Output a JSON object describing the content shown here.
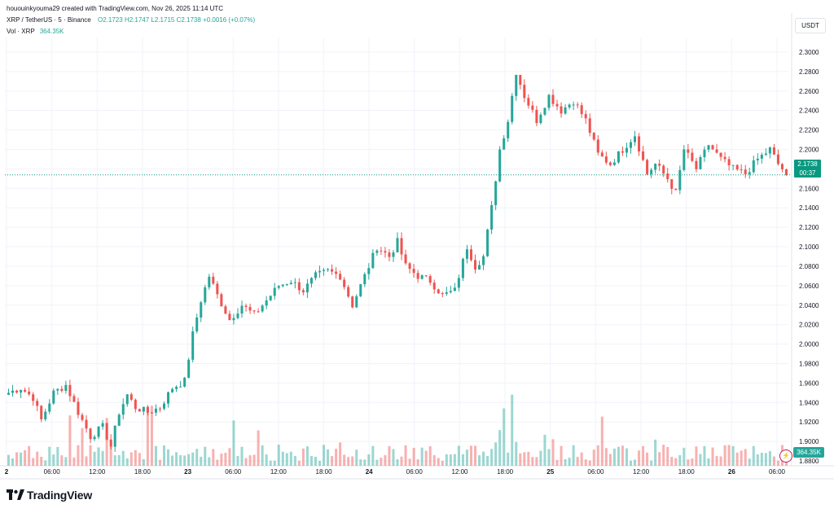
{
  "header": {
    "caption": "hououinkyouma29 created with TradingView.com, Nov 26, 2025 11:14 UTC"
  },
  "legend": {
    "symbol": "XRP / TetherUS · 5 · Binance",
    "open": "O2.1723",
    "high": "H2.1747",
    "low": "L2.1715",
    "close": "C2.1738",
    "change": "+0.0016 (+0.07%)"
  },
  "volume": {
    "label": "Vol · XRP",
    "value": "364.35K"
  },
  "currency": "USDT",
  "last_price": {
    "price": "2.1738",
    "countdown": "00:37",
    "value": 2.1738
  },
  "footer": {
    "brand": "TradingView"
  },
  "colors": {
    "up": "#26a69a",
    "down": "#ef5350",
    "price_line": "#089981"
  },
  "icons": {
    "bolt": "lightning-icon",
    "logo": "tradingview-logo-icon"
  },
  "chart_data": {
    "type": "candlestick",
    "ylim": [
      1.875,
      2.315
    ],
    "y_ticks": [
      "2.3000",
      "2.2800",
      "2.2600",
      "2.2400",
      "2.2200",
      "2.2000",
      "2.1800",
      "2.1600",
      "2.1400",
      "2.1200",
      "2.1000",
      "2.0800",
      "2.0600",
      "2.0400",
      "2.0200",
      "2.0000",
      "1.9800",
      "1.9600",
      "1.9400",
      "1.9200",
      "1.9000",
      "1.8800"
    ],
    "x_ticks": [
      "2",
      "06:00",
      "12:00",
      "18:00",
      "23",
      "06:00",
      "12:00",
      "18:00",
      "24",
      "06:00",
      "12:00",
      "18:00",
      "25",
      "06:00",
      "12:00",
      "18:00",
      "26",
      "06:00"
    ],
    "grid": true,
    "series": [
      {
        "anchors": [
          [
            0,
            1.95
          ],
          [
            3,
            1.955
          ],
          [
            6,
            1.945
          ],
          [
            8,
            1.922
          ],
          [
            11,
            1.95
          ],
          [
            14,
            1.958
          ],
          [
            17,
            1.93
          ],
          [
            20,
            1.905
          ],
          [
            23,
            1.915
          ],
          [
            25,
            1.895
          ],
          [
            27,
            1.93
          ],
          [
            29,
            1.948
          ],
          [
            31,
            1.935
          ],
          [
            34,
            1.93
          ],
          [
            37,
            1.935
          ],
          [
            40,
            1.955
          ],
          [
            43,
            1.962
          ],
          [
            45,
            2.01
          ],
          [
            47,
            2.045
          ],
          [
            49,
            2.07
          ],
          [
            51,
            2.05
          ],
          [
            54,
            2.025
          ],
          [
            57,
            2.04
          ],
          [
            60,
            2.03
          ],
          [
            63,
            2.045
          ],
          [
            66,
            2.06
          ],
          [
            69,
            2.065
          ],
          [
            72,
            2.055
          ],
          [
            75,
            2.07
          ],
          [
            78,
            2.075
          ],
          [
            81,
            2.07
          ],
          [
            84,
            2.04
          ],
          [
            87,
            2.07
          ],
          [
            90,
            2.1
          ],
          [
            93,
            2.09
          ],
          [
            95,
            2.105
          ],
          [
            97,
            2.08
          ],
          [
            100,
            2.07
          ],
          [
            103,
            2.065
          ],
          [
            106,
            2.05
          ],
          [
            109,
            2.055
          ],
          [
            112,
            2.1
          ],
          [
            114,
            2.08
          ],
          [
            116,
            2.09
          ],
          [
            118,
            2.14
          ],
          [
            120,
            2.2
          ],
          [
            122,
            2.23
          ],
          [
            124,
            2.28
          ],
          [
            126,
            2.255
          ],
          [
            129,
            2.23
          ],
          [
            132,
            2.255
          ],
          [
            135,
            2.24
          ],
          [
            138,
            2.25
          ],
          [
            141,
            2.23
          ],
          [
            144,
            2.195
          ],
          [
            147,
            2.185
          ],
          [
            150,
            2.2
          ],
          [
            153,
            2.215
          ],
          [
            156,
            2.175
          ],
          [
            158,
            2.185
          ],
          [
            161,
            2.17
          ],
          [
            163,
            2.155
          ],
          [
            165,
            2.2
          ],
          [
            168,
            2.18
          ],
          [
            171,
            2.205
          ],
          [
            174,
            2.19
          ],
          [
            177,
            2.18
          ],
          [
            180,
            2.175
          ],
          [
            183,
            2.19
          ],
          [
            186,
            2.2
          ],
          [
            188,
            2.185
          ],
          [
            190,
            2.175
          ]
        ]
      }
    ]
  }
}
